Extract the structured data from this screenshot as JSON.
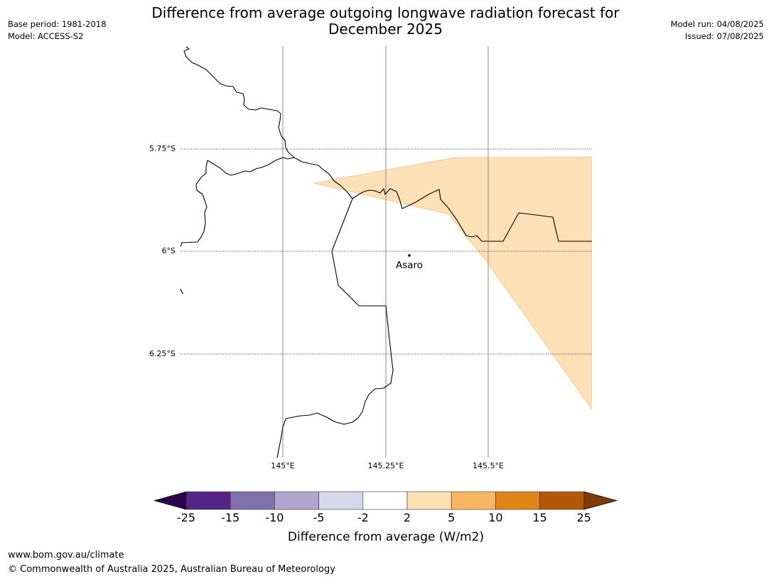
{
  "title": {
    "line1": "Difference from average outgoing longwave radiation forecast for",
    "line2": "December 2025"
  },
  "meta_left": {
    "base_period": "Base period: 1981-2018",
    "model": "Model: ACCESS-S2"
  },
  "meta_right": {
    "model_run": "Model run: 04/08/2025",
    "issued": "Issued: 07/08/2025"
  },
  "map": {
    "lat_labels": [
      "5.75°S",
      "6°S",
      "6.25°S"
    ],
    "lon_labels": [
      "145°E",
      "145.25°E",
      "145.5°E"
    ],
    "place": {
      "name": "Asaro"
    },
    "anomaly_fill_color": "#fde0b6",
    "anomaly_category": "2 to 5"
  },
  "colorbar": {
    "label": "Difference from average (W/m2)",
    "ticks": [
      "-25",
      "-15",
      "-10",
      "-5",
      "-2",
      "2",
      "5",
      "10",
      "15",
      "25"
    ],
    "colors": [
      "#552586",
      "#8071ad",
      "#b0a7d1",
      "#d9d8ea",
      "#ffffff",
      "#fde0b6",
      "#f9b660",
      "#e08519",
      "#b35807"
    ],
    "extend_low_color": "#2d004b",
    "extend_high_color": "#7f3b08"
  },
  "footer": {
    "url": "www.bom.gov.au/climate",
    "copyright": "© Commonwealth of Australia 2025, Australian Bureau of Meteorology"
  }
}
